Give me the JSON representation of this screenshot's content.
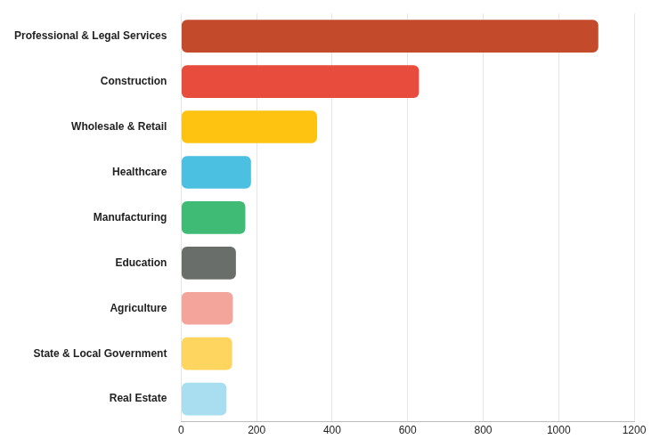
{
  "chart_data": {
    "type": "bar",
    "orientation": "horizontal",
    "categories": [
      "Professional & Legal Services",
      "Construction",
      "Wholesale & Retail",
      "Healthcare",
      "Manufacturing",
      "Education",
      "Agriculture",
      "State & Local Government",
      "Real Estate"
    ],
    "values": [
      1105,
      630,
      360,
      185,
      170,
      145,
      137,
      135,
      120
    ],
    "colors": [
      "#c44a2c",
      "#e84c3d",
      "#fec310",
      "#4bc0e0",
      "#3fbb76",
      "#6a6e6a",
      "#f3a59b",
      "#fdd55f",
      "#a9def0"
    ],
    "xlim": [
      0,
      1200
    ],
    "xticks": [
      0,
      200,
      400,
      600,
      800,
      1000,
      1200
    ],
    "grid": true
  }
}
